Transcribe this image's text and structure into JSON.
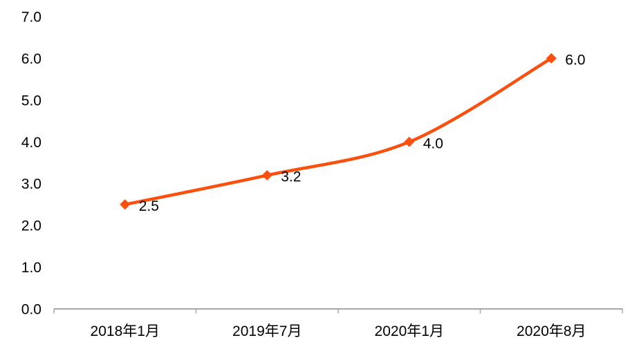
{
  "chart_data": {
    "type": "line",
    "title": "",
    "categories": [
      "2018年1月",
      "2019年7月",
      "2020年1月",
      "2020年8月"
    ],
    "values": [
      2.5,
      3.2,
      4.0,
      6.0
    ],
    "data_labels": [
      "2.5",
      "3.2",
      "4.0",
      "6.0"
    ],
    "y_tick_labels": [
      "0.0",
      "1.0",
      "2.0",
      "3.0",
      "4.0",
      "5.0",
      "6.0",
      "7.0"
    ],
    "ylim": [
      0.0,
      7.0
    ],
    "y_tick_step": 1.0,
    "xlabel": "",
    "ylabel": "",
    "grid": false,
    "legend": "none",
    "smooth_line": true,
    "marker_shape": "diamond",
    "line_color": "#FA500F",
    "marker_color": "#FA500F",
    "axis_color": "#A6A6A6",
    "text_color": "#000000",
    "background_color": "#FFFFFF"
  }
}
